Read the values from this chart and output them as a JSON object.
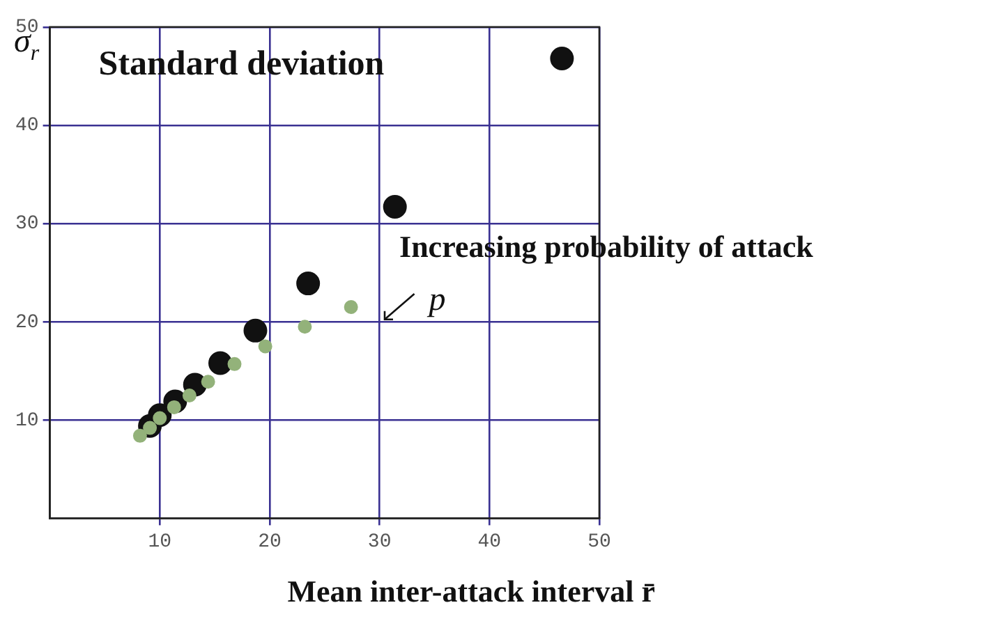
{
  "chart_data": {
    "type": "scatter",
    "xlabel": "Mean inter-attack interval r̄",
    "ylabel": "σ$_{r}$",
    "annotations": [
      "Increasing probability of attack",
      "p"
    ],
    "xlim": [
      0,
      50
    ],
    "ylim": [
      0,
      50
    ],
    "xticks": [
      10,
      20,
      30,
      40,
      50
    ],
    "yticks": [
      10,
      20,
      30,
      40,
      50
    ],
    "grid": true,
    "legend": false,
    "marker": "circle",
    "series": [
      {
        "name": "Standard deviation",
        "color": "#111111",
        "x": [
          46.6,
          31.4,
          23.5,
          18.7,
          15.5,
          13.2,
          11.4,
          10.0,
          9.1
        ],
        "values": [
          46.8,
          31.7,
          23.9,
          19.1,
          15.8,
          13.6,
          11.9,
          10.5,
          9.4
        ]
      },
      {
        "color": "#93b27a",
        "x": [
          27.4,
          23.2,
          19.6,
          16.8,
          14.4,
          12.7,
          11.3,
          10.0,
          9.1,
          8.2
        ],
        "values": [
          21.5,
          19.5,
          17.5,
          15.7,
          13.9,
          12.5,
          11.3,
          10.2,
          9.2,
          8.4
        ]
      }
    ]
  }
}
